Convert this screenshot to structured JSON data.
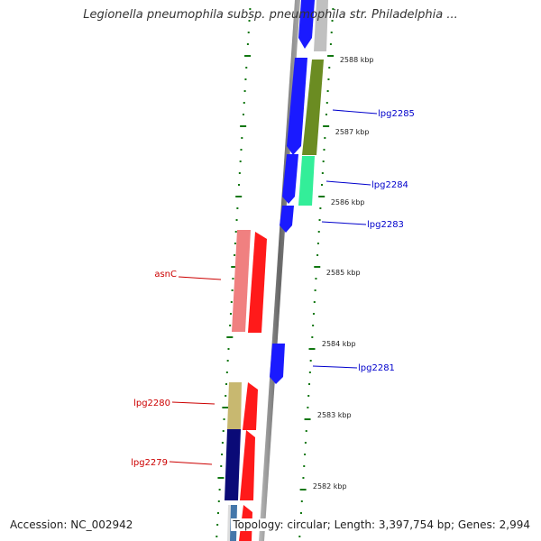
{
  "title": "Legionella pneumophila subsp. pneumophila str. Philadelphia ...",
  "accession": "Accession: NC_002942",
  "topology": "Topology: circular; Length: 3,397,754 bp; Genes: 2,994",
  "colors": {
    "forward": "#1a1aff",
    "reverse": "#ff1a1a",
    "backbone": "#888888",
    "tick": "#117711",
    "label_forward": "#0000cc",
    "label_reverse": "#cc0000"
  },
  "ticks": [
    {
      "label": "2588 kbp"
    },
    {
      "label": "2587 kbp"
    },
    {
      "label": "2586 kbp"
    },
    {
      "label": "2585 kbp"
    },
    {
      "label": "2584 kbp"
    },
    {
      "label": "2583 kbp"
    },
    {
      "label": "2582 kbp"
    }
  ],
  "gene_labels": [
    {
      "name": "lpg2285",
      "strand": "forward"
    },
    {
      "name": "lpg2284",
      "strand": "forward"
    },
    {
      "name": "lpg2283",
      "strand": "forward"
    },
    {
      "name": "asnC",
      "strand": "reverse"
    },
    {
      "name": "lpg2281",
      "strand": "forward"
    },
    {
      "name": "lpg2280",
      "strand": "reverse"
    },
    {
      "name": "lpg2279",
      "strand": "reverse"
    }
  ]
}
